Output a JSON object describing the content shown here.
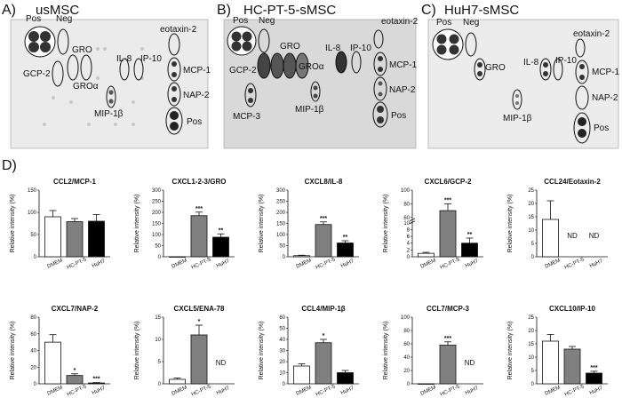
{
  "panel_d_letter": "D)",
  "blots": [
    {
      "letter": "A)",
      "title": "usMSC",
      "spots": [
        {
          "id": "pos_tl",
          "label": "Pos"
        },
        {
          "id": "neg",
          "label": "Neg"
        },
        {
          "id": "gro",
          "label": "GRO"
        },
        {
          "id": "gcp2",
          "label": "GCP-2"
        },
        {
          "id": "groa",
          "label": "GROα"
        },
        {
          "id": "il8",
          "label": "IL-8"
        },
        {
          "id": "ip10",
          "label": "IP-10"
        },
        {
          "id": "eotaxin2",
          "label": "eotaxin-2"
        },
        {
          "id": "mcp1",
          "label": "MCP-1"
        },
        {
          "id": "nap2",
          "label": "NAP-2"
        },
        {
          "id": "mip1b",
          "label": "MIP-1β"
        },
        {
          "id": "pos_br",
          "label": "Pos"
        }
      ]
    },
    {
      "letter": "B)",
      "title": "HC-PT-5-sMSC",
      "spots": [
        {
          "id": "pos_tl",
          "label": "Pos"
        },
        {
          "id": "neg",
          "label": "Neg"
        },
        {
          "id": "gro",
          "label": "GRO"
        },
        {
          "id": "gcp2",
          "label": "GCP-2"
        },
        {
          "id": "groa",
          "label": "GROα"
        },
        {
          "id": "il8",
          "label": "IL-8"
        },
        {
          "id": "ip10",
          "label": "IP-10"
        },
        {
          "id": "eotaxin2",
          "label": "eotaxin-2"
        },
        {
          "id": "mcp1",
          "label": "MCP-1"
        },
        {
          "id": "nap2",
          "label": "NAP-2"
        },
        {
          "id": "mcp3",
          "label": "MCP-3"
        },
        {
          "id": "mip1b",
          "label": "MIP-1β"
        },
        {
          "id": "pos_br",
          "label": "Pos"
        }
      ]
    },
    {
      "letter": "C)",
      "title": "HuH7-sMSC",
      "spots": [
        {
          "id": "pos_tl",
          "label": "Pos"
        },
        {
          "id": "neg",
          "label": "Neg"
        },
        {
          "id": "gro",
          "label": "GRO"
        },
        {
          "id": "il8",
          "label": "IL-8"
        },
        {
          "id": "ip10",
          "label": "IP-10"
        },
        {
          "id": "eotaxin2",
          "label": "eotaxin-2"
        },
        {
          "id": "mcp1",
          "label": "MCP-1"
        },
        {
          "id": "nap2",
          "label": "NAP-2"
        },
        {
          "id": "mip1b",
          "label": "MIP-1β"
        },
        {
          "id": "pos_br",
          "label": "Pos"
        }
      ]
    }
  ],
  "chart_data": [
    {
      "type": "bar",
      "title": "CCL2/MCP-1",
      "ylabel": "Relative intensity (%)",
      "categories": [
        "DMEM",
        "HC-PT-5",
        "HuH7"
      ],
      "values": [
        90,
        79,
        80
      ],
      "errors": [
        14,
        7,
        15
      ],
      "ylim": [
        0,
        150
      ],
      "yticks": [
        0,
        50,
        100,
        150
      ],
      "significance": [
        "",
        "",
        ""
      ],
      "nd": [
        false,
        false,
        false
      ],
      "fills": [
        "#ffffff",
        "#808080",
        "#000000"
      ]
    },
    {
      "type": "bar",
      "title": "CXCL1-2-3/GRO",
      "ylabel": "Relative intensity (%)",
      "categories": [
        "DMEM",
        "HC-PT-5",
        "HuH7"
      ],
      "values": [
        0,
        185,
        88
      ],
      "errors": [
        0,
        16,
        15
      ],
      "ylim": [
        0,
        300
      ],
      "yticks": [
        0,
        50,
        100,
        150,
        200,
        250,
        300
      ],
      "significance": [
        "",
        "***",
        "**"
      ],
      "nd": [
        false,
        false,
        false
      ],
      "fills": [
        "#ffffff",
        "#808080",
        "#000000"
      ]
    },
    {
      "type": "bar",
      "title": "CXCL8/IL-8",
      "ylabel": "Relative intensity (%)",
      "categories": [
        "DMEM",
        "HC-PT-5",
        "HuH7"
      ],
      "values": [
        5,
        145,
        62
      ],
      "errors": [
        2,
        12,
        10
      ],
      "ylim": [
        0,
        300
      ],
      "yticks": [
        0,
        50,
        100,
        150,
        200,
        250,
        300
      ],
      "significance": [
        "",
        "***",
        "**"
      ],
      "nd": [
        false,
        false,
        false
      ],
      "fills": [
        "#ffffff",
        "#808080",
        "#000000"
      ]
    },
    {
      "type": "bar",
      "title": "CXCL6/GCP-2",
      "ylabel": "Relative intensity (%)",
      "categories": [
        "DMEM",
        "HC-PT-5",
        "HuH7"
      ],
      "values": [
        1,
        70,
        4
      ],
      "errors": [
        0.3,
        10,
        1.5
      ],
      "ylim": [
        0,
        100
      ],
      "yticks": [
        0,
        2,
        4,
        6,
        8,
        10,
        60,
        80,
        100
      ],
      "significance": [
        "",
        "***",
        "**"
      ],
      "nd": [
        false,
        false,
        false
      ],
      "fills": [
        "#ffffff",
        "#808080",
        "#000000"
      ],
      "axis_break": true
    },
    {
      "type": "bar",
      "title": "CCL24/Eotaxin-2",
      "ylabel": "Relative intensity (%)",
      "categories": [
        "DMEM",
        "HC-PT-5",
        "HuH7"
      ],
      "values": [
        14,
        null,
        null
      ],
      "errors": [
        7,
        0,
        0
      ],
      "ylim": [
        0,
        25
      ],
      "yticks": [
        0,
        5,
        10,
        15,
        20,
        25
      ],
      "significance": [
        "",
        "",
        ""
      ],
      "nd": [
        false,
        true,
        true
      ],
      "nd_label": "ND",
      "fills": [
        "#ffffff",
        "#808080",
        "#000000"
      ]
    },
    {
      "type": "bar",
      "title": "CXCL7/NAP-2",
      "ylabel": "Relative intensity (%)",
      "categories": [
        "DMEM",
        "HC-PT-5",
        "HuH7"
      ],
      "values": [
        50,
        10,
        1
      ],
      "errors": [
        9,
        2,
        0.5
      ],
      "ylim": [
        0,
        80
      ],
      "yticks": [
        0,
        20,
        40,
        60,
        80
      ],
      "significance": [
        "",
        "*",
        "***"
      ],
      "nd": [
        false,
        false,
        false
      ],
      "fills": [
        "#ffffff",
        "#808080",
        "#000000"
      ]
    },
    {
      "type": "bar",
      "title": "CXCL5/ENA-78",
      "ylabel": "Relative intensity (%)",
      "categories": [
        "DMEM",
        "HC-PT-5",
        "HuH7"
      ],
      "values": [
        1,
        11,
        null
      ],
      "errors": [
        0.3,
        2.2,
        0
      ],
      "ylim": [
        0,
        15
      ],
      "yticks": [
        0,
        5,
        10,
        15
      ],
      "significance": [
        "",
        "*",
        ""
      ],
      "nd": [
        false,
        false,
        true
      ],
      "nd_label": "ND",
      "fills": [
        "#ffffff",
        "#808080",
        "#000000"
      ]
    },
    {
      "type": "bar",
      "title": "CCL4/MIP-1β",
      "ylabel": "Relative intensity (%)",
      "categories": [
        "DMEM",
        "HC-PT-5",
        "HuH7"
      ],
      "values": [
        16,
        37,
        10
      ],
      "errors": [
        2,
        3,
        2
      ],
      "ylim": [
        0,
        60
      ],
      "yticks": [
        0,
        10,
        20,
        30,
        40,
        50,
        60
      ],
      "significance": [
        "",
        "*",
        ""
      ],
      "nd": [
        false,
        false,
        false
      ],
      "fills": [
        "#ffffff",
        "#808080",
        "#000000"
      ]
    },
    {
      "type": "bar",
      "title": "CCL7/MCP-3",
      "ylabel": "Relative intensity (%)",
      "categories": [
        "DMEM",
        "HC-PT-5",
        "HuH7"
      ],
      "values": [
        0,
        58,
        null
      ],
      "errors": [
        0,
        5,
        0
      ],
      "ylim": [
        0,
        100
      ],
      "yticks": [
        0,
        20,
        40,
        60,
        80,
        100
      ],
      "significance": [
        "",
        "***",
        ""
      ],
      "nd": [
        false,
        false,
        true
      ],
      "nd_label": "ND",
      "fills": [
        "#ffffff",
        "#808080",
        "#000000"
      ]
    },
    {
      "type": "bar",
      "title": "CXCL10/IP-10",
      "ylabel": "Relative intensity (%)",
      "categories": [
        "DMEM",
        "HC-PT-5",
        "HuH7"
      ],
      "values": [
        16,
        13,
        4
      ],
      "errors": [
        2.5,
        1,
        0.7
      ],
      "ylim": [
        0,
        25
      ],
      "yticks": [
        0,
        5,
        10,
        15,
        20,
        25
      ],
      "significance": [
        "",
        "",
        "***"
      ],
      "nd": [
        false,
        false,
        false
      ],
      "fills": [
        "#ffffff",
        "#808080",
        "#000000"
      ]
    }
  ]
}
